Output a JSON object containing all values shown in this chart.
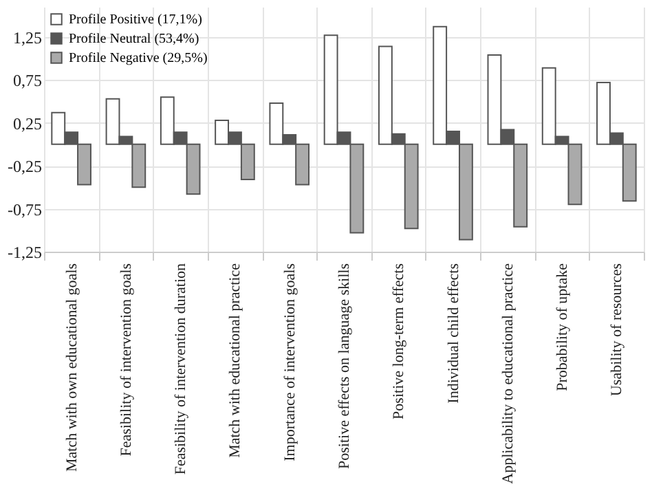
{
  "chart_data": {
    "type": "bar",
    "categories": [
      "Match with own educational goals",
      "Feasibility of intervention goals",
      "Feasibility of intervention duration",
      "Match with educational practice",
      "Importance of intervention goals",
      "Positive effects on language skills",
      "Positive long-term effects",
      "Individual child effects",
      "Applicability to educational practice",
      "Probability of uptake",
      "Usability of resources"
    ],
    "series": [
      {
        "name": "Profile Positive (17,1%)",
        "color": "#ffffff",
        "values": [
          0.37,
          0.53,
          0.55,
          0.28,
          0.48,
          1.27,
          1.14,
          1.37,
          1.04,
          0.89,
          0.72
        ]
      },
      {
        "name": "Profile Neutral (53,4%)",
        "color": "#555555",
        "values": [
          0.14,
          0.09,
          0.14,
          0.14,
          0.11,
          0.14,
          0.12,
          0.15,
          0.17,
          0.09,
          0.13
        ]
      },
      {
        "name": "Profile Negative (29,5%)",
        "color": "#aaaaaa",
        "values": [
          -0.47,
          -0.5,
          -0.58,
          -0.41,
          -0.47,
          -1.03,
          -0.98,
          -1.11,
          -0.96,
          -0.7,
          -0.66
        ]
      }
    ],
    "ylim": [
      -1.25,
      1.6
    ],
    "yticks": [
      {
        "value": -1.25,
        "label": "-1,25"
      },
      {
        "value": -0.75,
        "label": "-0,75"
      },
      {
        "value": -0.25,
        "label": "-0,25"
      },
      {
        "value": 0.25,
        "label": "0,25"
      },
      {
        "value": 0.75,
        "label": "0,75"
      },
      {
        "value": 1.25,
        "label": "1,25"
      }
    ],
    "grid": true,
    "legend": "top left"
  }
}
